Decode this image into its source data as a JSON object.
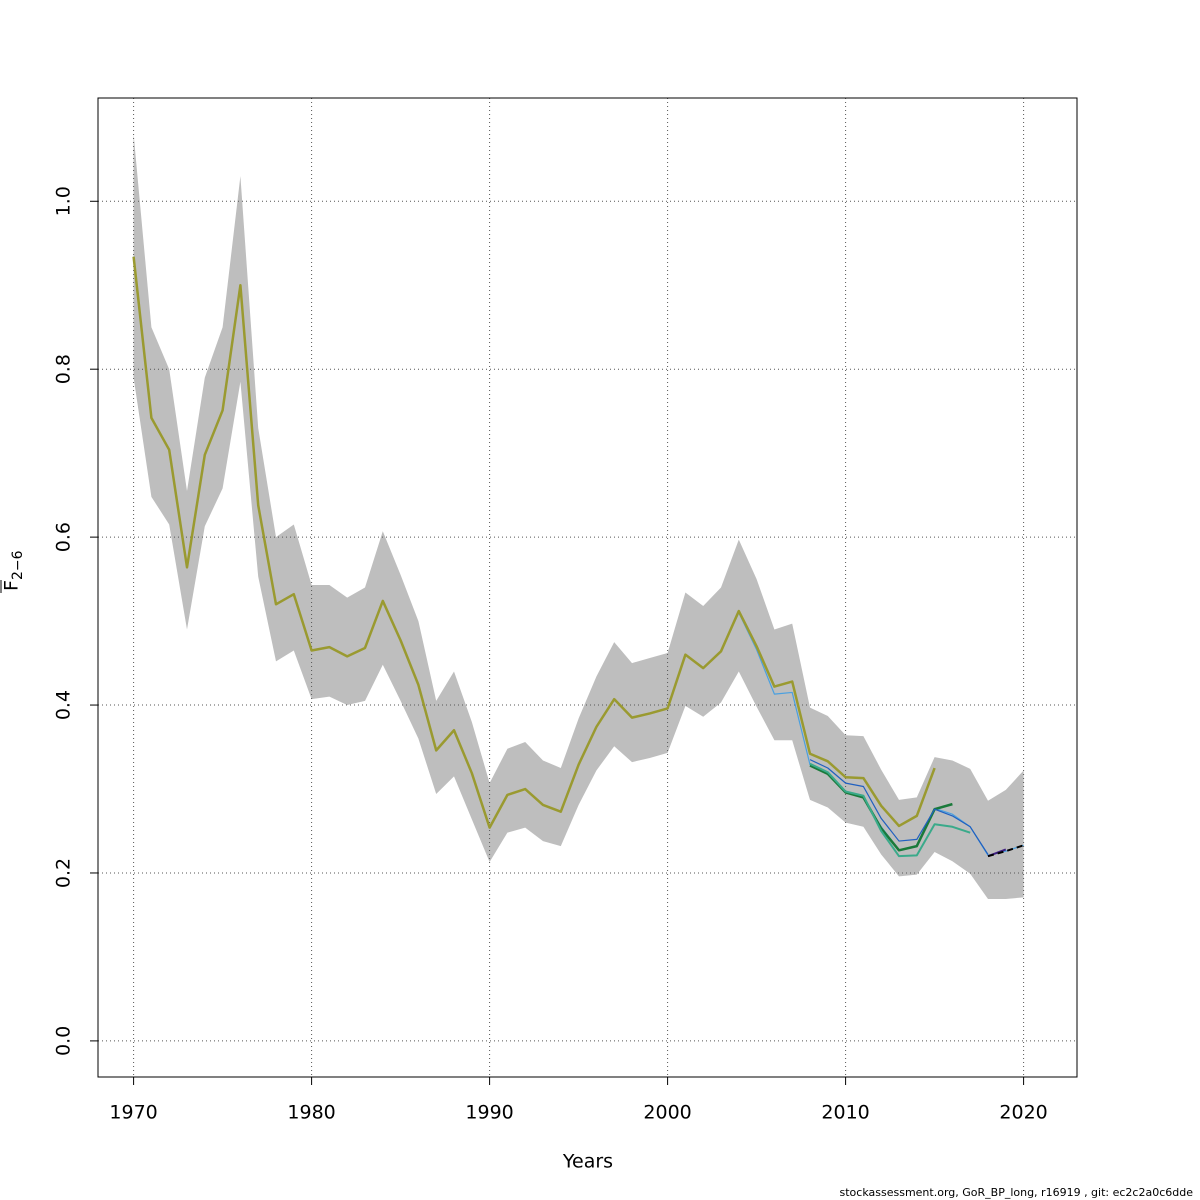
{
  "chart_data": {
    "type": "line",
    "xlabel": "Years",
    "ylabel": "F",
    "ylabel_sub": "2−6",
    "footnote": "stockassessment.org, GoR_BP_long, r16919 , git: ec2c2a0c6dde",
    "xlim": [
      1968,
      2023
    ],
    "ylim": [
      -0.043,
      1.123
    ],
    "xticks": [
      1970,
      1980,
      1990,
      2000,
      2010,
      2020
    ],
    "yticks": [
      {
        "value": 0,
        "label": "0.0"
      },
      0.2,
      0.4,
      0.6,
      0.8,
      {
        "value": 1,
        "label": "1.0"
      }
    ],
    "grid": true,
    "band": {
      "color": "#bebebe",
      "x": [
        1970,
        1971,
        1972,
        1973,
        1974,
        1975,
        1976,
        1977,
        1978,
        1979,
        1980,
        1981,
        1982,
        1983,
        1984,
        1985,
        1986,
        1987,
        1988,
        1989,
        1990,
        1991,
        1992,
        1993,
        1994,
        1995,
        1996,
        1997,
        1998,
        1999,
        2000,
        2001,
        2002,
        2003,
        2004,
        2005,
        2006,
        2007,
        2008,
        2009,
        2010,
        2011,
        2012,
        2013,
        2014,
        2015,
        2016,
        2017,
        2018,
        2019,
        2020
      ],
      "upper": [
        1.08,
        0.85,
        0.8,
        0.655,
        0.79,
        0.85,
        1.03,
        0.73,
        0.6,
        0.615,
        0.543,
        0.543,
        0.528,
        0.54,
        0.607,
        0.555,
        0.5,
        0.405,
        0.44,
        0.38,
        0.307,
        0.348,
        0.356,
        0.334,
        0.325,
        0.384,
        0.434,
        0.475,
        0.45,
        0.456,
        0.462,
        0.534,
        0.518,
        0.54,
        0.597,
        0.55,
        0.49,
        0.497,
        0.397,
        0.387,
        0.364,
        0.363,
        0.323,
        0.287,
        0.29,
        0.338,
        0.334,
        0.324,
        0.286,
        0.299,
        0.322
      ],
      "lower": [
        0.79,
        0.648,
        0.615,
        0.49,
        0.613,
        0.658,
        0.785,
        0.553,
        0.452,
        0.465,
        0.407,
        0.41,
        0.4,
        0.405,
        0.448,
        0.405,
        0.36,
        0.294,
        0.315,
        0.264,
        0.213,
        0.248,
        0.254,
        0.238,
        0.232,
        0.281,
        0.322,
        0.351,
        0.332,
        0.337,
        0.343,
        0.399,
        0.386,
        0.403,
        0.44,
        0.398,
        0.358,
        0.358,
        0.287,
        0.278,
        0.26,
        0.255,
        0.222,
        0.196,
        0.198,
        0.225,
        0.214,
        0.199,
        0.169,
        0.169,
        0.171
      ]
    },
    "series": [
      {
        "color": "#4aa0e0",
        "width": 1.2,
        "x": [
          1970,
          1971,
          1972,
          1973,
          1974,
          1975,
          1976,
          1977,
          1978,
          1979,
          1980,
          1981,
          1982,
          1983,
          1984,
          1985,
          1986,
          1987,
          1988,
          1989,
          1990,
          1991,
          1992,
          1993,
          1994,
          1995,
          1996,
          1997,
          1998,
          1999,
          2000,
          2001,
          2002,
          2003,
          2004,
          2005,
          2006,
          2007,
          2008,
          2009,
          2010,
          2011,
          2012,
          2013,
          2014,
          2015,
          2016,
          2017,
          2018,
          2019,
          2020
        ],
        "values": [
          0.934,
          0.742,
          0.704,
          0.564,
          0.698,
          0.751,
          0.9,
          0.638,
          0.52,
          0.532,
          0.465,
          0.469,
          0.458,
          0.468,
          0.524,
          0.477,
          0.424,
          0.346,
          0.37,
          0.319,
          0.254,
          0.293,
          0.3,
          0.281,
          0.273,
          0.329,
          0.374,
          0.407,
          0.385,
          0.39,
          0.396,
          0.46,
          0.444,
          0.464,
          0.51,
          0.466,
          0.413,
          0.415,
          0.329,
          0.318,
          0.296,
          0.29,
          0.255,
          0.227,
          0.232,
          0.277,
          0.27,
          0.255,
          0.221,
          0.226,
          0.233
        ]
      },
      {
        "color": "#9a9a30",
        "width": 2.5,
        "x": [
          1970,
          1971,
          1972,
          1973,
          1974,
          1975,
          1976,
          1977,
          1978,
          1979,
          1980,
          1981,
          1982,
          1983,
          1984,
          1985,
          1986,
          1987,
          1988,
          1989,
          1990,
          1991,
          1992,
          1993,
          1994,
          1995,
          1996,
          1997,
          1998,
          1999,
          2000,
          2001,
          2002,
          2003,
          2004,
          2005,
          2006,
          2007,
          2008,
          2009,
          2010,
          2011,
          2012,
          2013,
          2014,
          2015
        ],
        "values": [
          0.934,
          0.742,
          0.704,
          0.564,
          0.698,
          0.751,
          0.9,
          0.638,
          0.52,
          0.532,
          0.465,
          0.469,
          0.458,
          0.468,
          0.524,
          0.477,
          0.424,
          0.346,
          0.37,
          0.319,
          0.254,
          0.293,
          0.3,
          0.281,
          0.273,
          0.329,
          0.374,
          0.407,
          0.385,
          0.39,
          0.396,
          0.46,
          0.444,
          0.464,
          0.512,
          0.47,
          0.422,
          0.428,
          0.342,
          0.333,
          0.314,
          0.313,
          0.28,
          0.256,
          0.268,
          0.325
        ]
      },
      {
        "color": "#1a7a3a",
        "width": 2.5,
        "x": [
          2008,
          2009,
          2010,
          2011,
          2012,
          2013,
          2014,
          2015,
          2016
        ],
        "values": [
          0.328,
          0.318,
          0.296,
          0.29,
          0.253,
          0.227,
          0.232,
          0.276,
          0.282
        ]
      },
      {
        "color": "#3aaa8a",
        "width": 2,
        "x": [
          2008,
          2009,
          2010,
          2011,
          2012,
          2013,
          2014,
          2015,
          2016,
          2017
        ],
        "values": [
          0.33,
          0.32,
          0.297,
          0.292,
          0.25,
          0.22,
          0.221,
          0.258,
          0.255,
          0.248
        ]
      },
      {
        "color": "#2060c0",
        "width": 1.2,
        "x": [
          2008,
          2009,
          2010,
          2011,
          2012,
          2013,
          2014,
          2015,
          2016,
          2017,
          2018
        ],
        "values": [
          0.335,
          0.325,
          0.307,
          0.303,
          0.265,
          0.238,
          0.24,
          0.276,
          0.268,
          0.255,
          0.222
        ]
      },
      {
        "color": "#402080",
        "width": 2,
        "x": [
          2018,
          2019
        ],
        "values": [
          0.22,
          0.228
        ]
      },
      {
        "color": "#000000",
        "width": 2,
        "dashed": true,
        "x": [
          2018,
          2019,
          2020
        ],
        "values": [
          0.22,
          0.226,
          0.233
        ]
      }
    ]
  }
}
